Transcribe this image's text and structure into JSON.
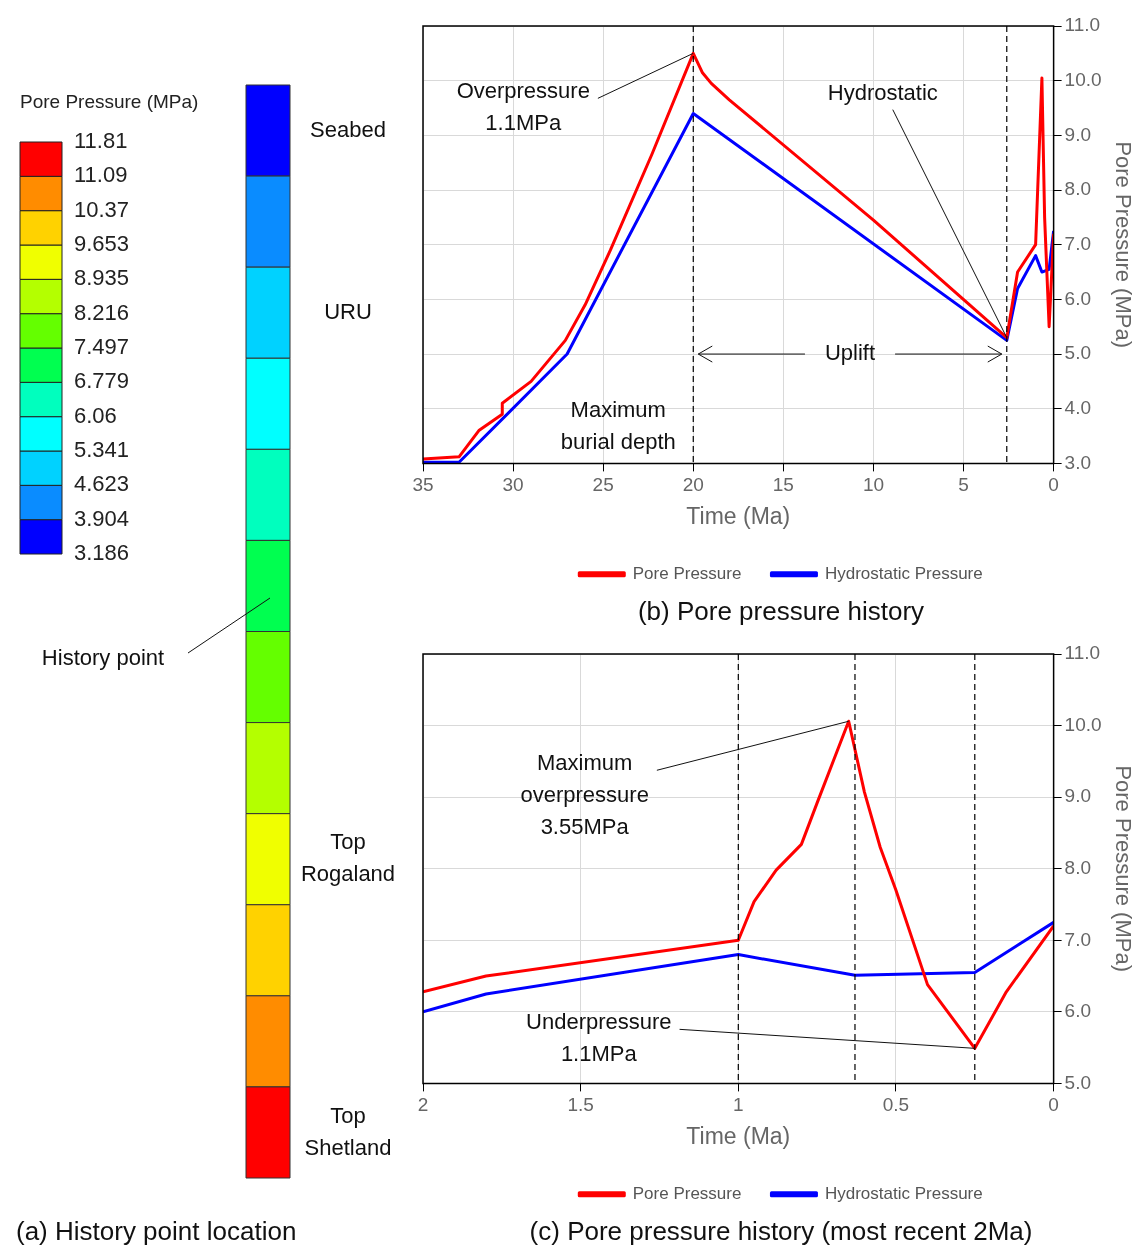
{
  "chart_data": [
    {
      "type": "heatmap",
      "title": "(a) History point location",
      "clabel": "Pore Pressure (MPa)",
      "categories": [
        null
      ],
      "y_categories": [
        null,
        null,
        null,
        null,
        null,
        null,
        null,
        null,
        null,
        null,
        null,
        null
      ],
      "y2_categories": [
        "Seabed",
        null,
        "URU",
        null,
        null,
        null,
        null,
        null,
        "Top Rogaland",
        null,
        null,
        "Top Shetland"
      ],
      "cells": [
        [
          3.5
        ],
        [
          4.3
        ],
        [
          5.0
        ],
        [
          5.7
        ],
        [
          6.4
        ],
        [
          7.1
        ],
        [
          7.9
        ],
        [
          8.6
        ],
        [
          9.3
        ],
        [
          10.0
        ],
        [
          10.7
        ],
        [
          11.4
        ]
      ],
      "cticks": [
        3.186,
        3.904,
        4.623,
        5.341,
        6.06,
        6.779,
        7.497,
        8.216,
        8.935,
        9.653,
        10.37,
        11.09,
        11.81
      ],
      "colors": [
        "#0000ff",
        "#0a8cff",
        "#00d2ff",
        "#00ffff",
        "#00ffbe",
        "#00ff50",
        "#64ff00",
        "#b4ff00",
        "#f0ff00",
        "#ffd200",
        "#ff8c00",
        "#ff0000"
      ],
      "annotations": [
        "History point"
      ]
    },
    {
      "type": "line",
      "title": "(b) Pore pressure history",
      "xlabel": "Time (Ma)",
      "ylabel": "Pore Pressure (MPa)",
      "series": [
        {
          "name": "Pore Pressure",
          "color": "#ff0000",
          "x": [
            35,
            33,
            31.9,
            30.6,
            30.6,
            29,
            27.1,
            26,
            24.6,
            22.3,
            20,
            19.5,
            19,
            18,
            10,
            2.6,
            2,
            1,
            0.65,
            0.5,
            0.25,
            0
          ],
          "values": [
            3.08,
            3.12,
            3.6,
            3.9,
            4.1,
            4.5,
            5.25,
            5.9,
            6.9,
            8.65,
            10.5,
            10.15,
            9.95,
            9.65,
            7.45,
            5.3,
            6.5,
            7.0,
            10.05,
            7.5,
            5.5,
            7.2
          ]
        },
        {
          "name": "Hydrostatic Pressure",
          "color": "#0000ff",
          "x": [
            35,
            33,
            27,
            20,
            2.6,
            2,
            1,
            0.65,
            0.25,
            0
          ],
          "values": [
            3.02,
            3.02,
            5.0,
            9.4,
            5.25,
            6.2,
            6.8,
            6.5,
            6.55,
            7.25
          ]
        }
      ],
      "xlim": [
        35,
        0
      ],
      "xticks": [
        35,
        30,
        25,
        20,
        15,
        10,
        5,
        0
      ],
      "ylim": [
        3,
        11
      ],
      "yticks": [
        {
          "value": 3,
          "label": "3.0"
        },
        {
          "value": 4,
          "label": "4.0"
        },
        {
          "value": 5,
          "label": "5.0"
        },
        {
          "value": 6,
          "label": "6.0"
        },
        {
          "value": 7,
          "label": "7.0"
        },
        {
          "value": 8,
          "label": "8.0"
        },
        {
          "value": 9,
          "label": "9.0"
        },
        {
          "value": 10,
          "label": "10.0"
        },
        {
          "value": 11,
          "label": "11.0"
        }
      ],
      "ref_lines": [
        {
          "axis": "x",
          "value": 20,
          "label": "Maximum burial depth",
          "line_style": "dashed"
        },
        {
          "axis": "x",
          "value": 2.6,
          "line_style": "dashed"
        }
      ],
      "annotations": [
        {
          "text": "Overpressure 1.1MPa",
          "x": 20,
          "y": 10.5
        },
        {
          "text": "Hydrostatic",
          "x": 2.6,
          "y": 5.3
        },
        "Uplift"
      ],
      "grid": true,
      "legend": "bottom",
      "marker": "none",
      "line_style": "solid"
    },
    {
      "type": "line",
      "title": "(c) Pore pressure history (most recent 2Ma)",
      "xlabel": "Time (Ma)",
      "ylabel": "Pore Pressure (MPa)",
      "series": [
        {
          "name": "Pore Pressure",
          "color": "#ff0000",
          "x": [
            2,
            1.8,
            1,
            0.95,
            0.88,
            0.8,
            0.75,
            0.65,
            0.6,
            0.55,
            0.5,
            0.4,
            0.25,
            0.15,
            0
          ],
          "values": [
            6.28,
            6.5,
            7.0,
            7.54,
            7.98,
            8.34,
            8.92,
            10.06,
            9.07,
            8.3,
            7.7,
            6.38,
            5.49,
            6.28,
            7.2
          ]
        },
        {
          "name": "Hydrostatic Pressure",
          "color": "#0000ff",
          "x": [
            2,
            1.8,
            1,
            0.63,
            0.25,
            0
          ],
          "values": [
            6.0,
            6.25,
            6.8,
            6.51,
            6.55,
            7.25
          ]
        }
      ],
      "xlim": [
        2,
        0
      ],
      "xticks": [
        2,
        1.5,
        1,
        0.5,
        0
      ],
      "ylim": [
        5,
        11
      ],
      "yticks": [
        {
          "value": 5,
          "label": "5.0"
        },
        {
          "value": 6,
          "label": "6.0"
        },
        {
          "value": 7,
          "label": "7.0"
        },
        {
          "value": 8,
          "label": "8.0"
        },
        {
          "value": 9,
          "label": "9.0"
        },
        {
          "value": 10,
          "label": "10.0"
        },
        {
          "value": 11,
          "label": "11.0"
        }
      ],
      "ref_lines": [
        {
          "axis": "x",
          "value": 1,
          "line_style": "dashed"
        },
        {
          "axis": "x",
          "value": 0.63,
          "line_style": "dashed"
        },
        {
          "axis": "x",
          "value": 0.25,
          "line_style": "dashed"
        }
      ],
      "annotations": [
        {
          "text": "Maximum overpressure 3.55MPa",
          "x": 0.65,
          "y": 10.06
        },
        {
          "text": "Underpressure 1.1MPa",
          "x": 0.25,
          "y": 5.49
        }
      ],
      "grid": true,
      "legend": "bottom",
      "marker": "none",
      "line_style": "solid"
    }
  ]
}
